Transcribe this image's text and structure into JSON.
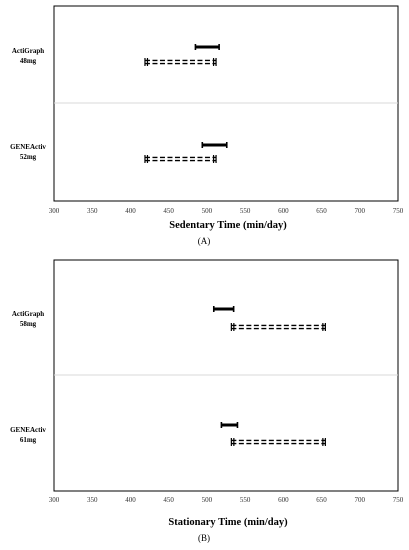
{
  "colors": {
    "frame": "#000000",
    "divider": "#d9d9d9",
    "ink": "#000000"
  },
  "chart_data": [
    {
      "type": "interval",
      "panel_label": "(A)",
      "xlabel": "Sedentary Time (min/day)",
      "xlim": [
        300,
        750
      ],
      "ticks": [
        300,
        350,
        400,
        450,
        500,
        550,
        600,
        650,
        700,
        750
      ],
      "grid": false,
      "rows": [
        {
          "label_line1": "ActiGraph",
          "label_line2": "48mg",
          "solid_interval": [
            485,
            516
          ],
          "dashed_interval": [
            419,
            512
          ]
        },
        {
          "label_line1": "GENEActiv",
          "label_line2": "52mg",
          "solid_interval": [
            494,
            526
          ],
          "dashed_interval": [
            419,
            512
          ]
        }
      ]
    },
    {
      "type": "interval",
      "panel_label": "(B)",
      "xlabel": "Stationary Time (min/day)",
      "xlim": [
        300,
        750
      ],
      "ticks": [
        300,
        350,
        400,
        450,
        500,
        550,
        600,
        650,
        700,
        750
      ],
      "grid": false,
      "rows": [
        {
          "label_line1": "ActiGraph",
          "label_line2": "58mg",
          "solid_interval": [
            509,
            535
          ],
          "dashed_interval": [
            532,
            655
          ]
        },
        {
          "label_line1": "GENEActiv",
          "label_line2": "61mg",
          "solid_interval": [
            519,
            540
          ],
          "dashed_interval": [
            532,
            655
          ]
        }
      ]
    }
  ]
}
